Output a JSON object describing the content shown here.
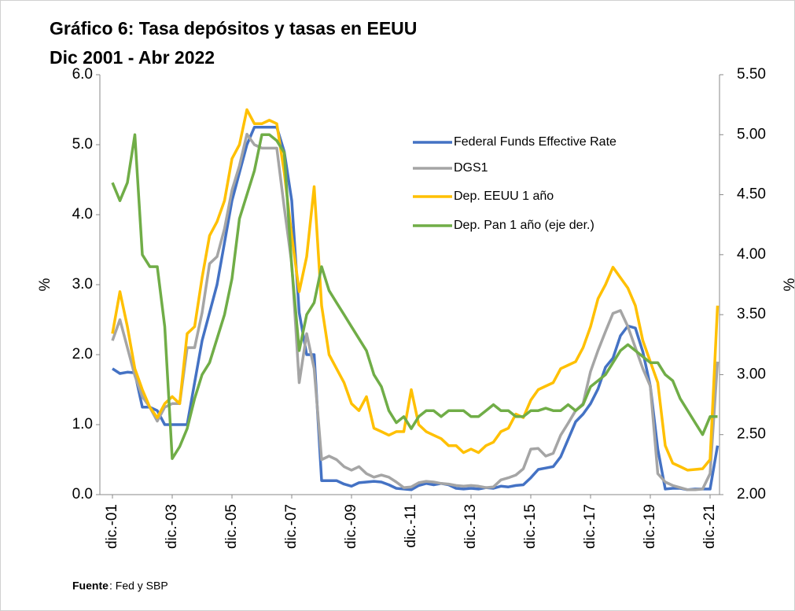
{
  "chart_data": {
    "type": "line",
    "title": "Gráfico 6:  Tasa depósitos y tasas en EEUU",
    "subtitle": "Dic 2001 -  Abr 2022",
    "ylabel": "%",
    "y2label": "%",
    "source_label": "Fuente",
    "source_text": ": Fed y SBP",
    "legend": "upper right",
    "grid": false,
    "categories": [
      "dic.-01",
      null,
      null,
      null,
      null,
      null,
      null,
      null,
      "dic.-03",
      null,
      null,
      null,
      null,
      null,
      null,
      null,
      "dic.-05",
      null,
      null,
      null,
      null,
      null,
      null,
      null,
      "dic.-07",
      null,
      null,
      null,
      null,
      null,
      null,
      null,
      "dic.-09",
      null,
      null,
      null,
      null,
      null,
      null,
      null,
      "dic.-11",
      null,
      null,
      null,
      null,
      null,
      null,
      null,
      "dic.-13",
      null,
      null,
      null,
      null,
      null,
      null,
      null,
      "dic.-15",
      null,
      null,
      null,
      null,
      null,
      null,
      null,
      "dic.-17",
      null,
      null,
      null,
      null,
      null,
      null,
      null,
      "dic.-19",
      null,
      null,
      null,
      null,
      null,
      null,
      null,
      "dic.-21",
      null
    ],
    "ylim": [
      0,
      6
    ],
    "yticks": [
      {
        "value": 0,
        "label": "0.0"
      },
      {
        "value": 1,
        "label": "1.0"
      },
      {
        "value": 2,
        "label": "2.0"
      },
      {
        "value": 3,
        "label": "3.0"
      },
      {
        "value": 4,
        "label": "4.0"
      },
      {
        "value": 5,
        "label": "5.0"
      },
      {
        "value": 6,
        "label": "6.0"
      }
    ],
    "y2lim": [
      2,
      5.5
    ],
    "y2ticks": [
      {
        "value": 2,
        "label": "2.00"
      },
      {
        "value": 2.5,
        "label": "2.50"
      },
      {
        "value": 3,
        "label": "3.00"
      },
      {
        "value": 3.5,
        "label": "3.50"
      },
      {
        "value": 4,
        "label": "4.00"
      },
      {
        "value": 4.5,
        "label": "4.50"
      },
      {
        "value": 5,
        "label": "5.00"
      },
      {
        "value": 5.5,
        "label": "5.50"
      }
    ],
    "series": [
      {
        "name": "Federal Funds Effective Rate",
        "color": "#4472c4",
        "values": [
          1.8,
          1.73,
          1.75,
          1.74,
          1.25,
          1.25,
          1.2,
          1.0,
          1.0,
          1.0,
          1.0,
          1.6,
          2.2,
          2.6,
          3.0,
          3.6,
          4.2,
          4.6,
          5.0,
          5.25,
          5.25,
          5.25,
          5.25,
          4.9,
          4.2,
          2.6,
          2.0,
          2.0,
          0.2,
          0.2,
          0.2,
          0.15,
          0.12,
          0.17,
          0.18,
          0.19,
          0.18,
          0.14,
          0.09,
          0.08,
          0.07,
          0.13,
          0.16,
          0.14,
          0.16,
          0.14,
          0.09,
          0.08,
          0.09,
          0.08,
          0.1,
          0.09,
          0.12,
          0.11,
          0.13,
          0.14,
          0.24,
          0.36,
          0.38,
          0.4,
          0.54,
          0.79,
          1.04,
          1.15,
          1.3,
          1.51,
          1.82,
          1.95,
          2.27,
          2.41,
          2.38,
          2.04,
          1.55,
          0.65,
          0.08,
          0.09,
          0.09,
          0.07,
          0.08,
          0.08,
          0.08,
          0.7
        ]
      },
      {
        "name": "DGS1",
        "color": "#a5a5a5",
        "values": [
          2.2,
          2.5,
          2.1,
          1.7,
          1.4,
          1.25,
          1.05,
          1.25,
          1.3,
          1.3,
          2.1,
          2.1,
          2.6,
          3.3,
          3.4,
          3.8,
          4.35,
          4.7,
          5.15,
          5.0,
          4.95,
          4.95,
          4.95,
          4.1,
          3.3,
          1.6,
          2.3,
          1.8,
          0.5,
          0.55,
          0.5,
          0.4,
          0.35,
          0.4,
          0.3,
          0.25,
          0.28,
          0.25,
          0.18,
          0.1,
          0.11,
          0.17,
          0.19,
          0.18,
          0.16,
          0.15,
          0.13,
          0.12,
          0.13,
          0.12,
          0.1,
          0.11,
          0.21,
          0.24,
          0.28,
          0.37,
          0.65,
          0.66,
          0.55,
          0.59,
          0.85,
          1.02,
          1.2,
          1.3,
          1.76,
          2.06,
          2.33,
          2.59,
          2.63,
          2.4,
          2.1,
          1.8,
          1.55,
          0.3,
          0.18,
          0.13,
          0.1,
          0.07,
          0.07,
          0.08,
          0.3,
          1.9
        ]
      },
      {
        "name": "Dep. EEUU 1 año",
        "color": "#ffc000",
        "values": [
          2.3,
          2.9,
          2.4,
          1.8,
          1.5,
          1.25,
          1.1,
          1.3,
          1.4,
          1.3,
          2.3,
          2.4,
          3.1,
          3.7,
          3.9,
          4.2,
          4.8,
          5.0,
          5.5,
          5.3,
          5.3,
          5.35,
          5.3,
          4.6,
          3.7,
          2.9,
          3.4,
          4.4,
          2.7,
          2.0,
          1.8,
          1.6,
          1.3,
          1.2,
          1.4,
          0.95,
          0.9,
          0.85,
          0.9,
          0.9,
          1.5,
          1.0,
          0.9,
          0.85,
          0.8,
          0.7,
          0.7,
          0.6,
          0.65,
          0.6,
          0.7,
          0.75,
          0.9,
          0.95,
          1.15,
          1.1,
          1.35,
          1.5,
          1.55,
          1.6,
          1.8,
          1.85,
          1.9,
          2.1,
          2.4,
          2.8,
          3.0,
          3.25,
          3.1,
          2.95,
          2.7,
          2.2,
          1.9,
          1.6,
          0.7,
          0.45,
          0.4,
          0.35,
          0.36,
          0.37,
          0.5,
          2.7
        ]
      },
      {
        "name": "Dep. Pan 1 año (eje der.)",
        "color": "#70ad47",
        "axis": "y2",
        "values": [
          4.6,
          4.45,
          4.6,
          5.0,
          4.0,
          3.9,
          3.9,
          3.4,
          2.3,
          2.4,
          2.55,
          2.8,
          3.0,
          3.1,
          3.3,
          3.5,
          3.8,
          4.3,
          4.5,
          4.7,
          5.0,
          5.0,
          4.95,
          4.85,
          3.9,
          3.2,
          3.5,
          3.6,
          3.9,
          3.7,
          3.6,
          3.5,
          3.4,
          3.3,
          3.2,
          3.0,
          2.9,
          2.7,
          2.6,
          2.65,
          2.55,
          2.65,
          2.7,
          2.7,
          2.65,
          2.7,
          2.7,
          2.7,
          2.65,
          2.65,
          2.7,
          2.75,
          2.7,
          2.7,
          2.65,
          2.65,
          2.7,
          2.7,
          2.72,
          2.7,
          2.7,
          2.75,
          2.7,
          2.75,
          2.9,
          2.95,
          3.0,
          3.1,
          3.2,
          3.25,
          3.2,
          3.15,
          3.1,
          3.1,
          3.0,
          2.95,
          2.8,
          2.7,
          2.6,
          2.5,
          2.65,
          2.65
        ]
      }
    ]
  }
}
